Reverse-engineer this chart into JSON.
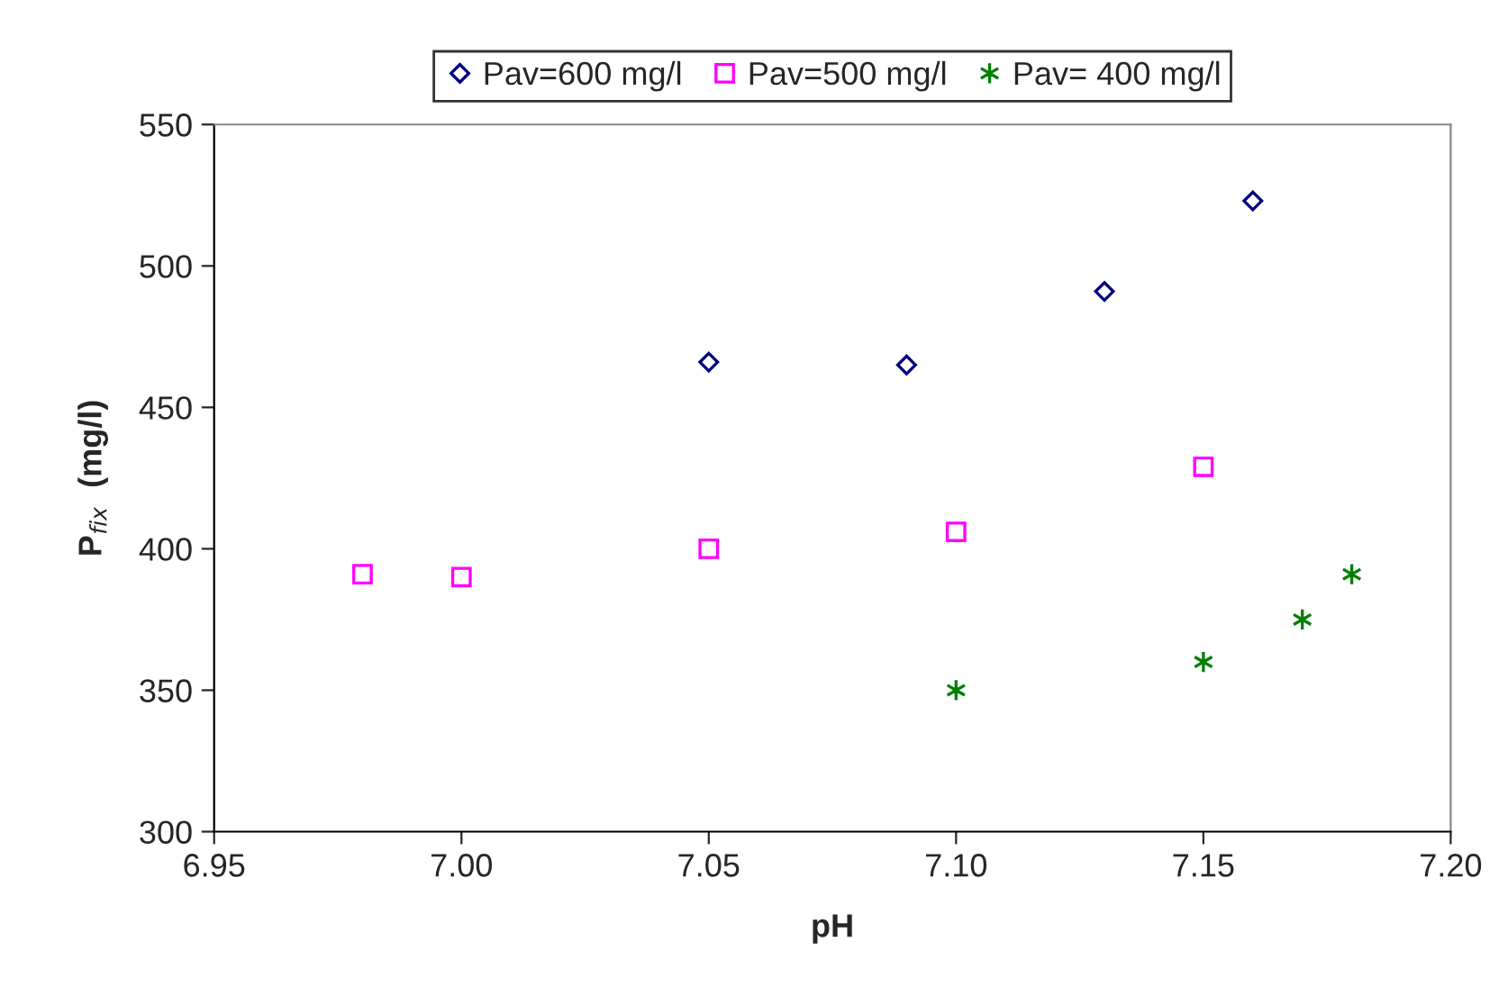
{
  "chart_data": {
    "type": "scatter",
    "xlabel": "pH",
    "ylabel": "P$_{fix}$  (mg/l)",
    "xlim": [
      6.95,
      7.2
    ],
    "xticks": [
      {
        "value": 6.95,
        "label": "6.95"
      },
      {
        "value": 7.0,
        "label": "7.00"
      },
      {
        "value": 7.05,
        "label": "7.05"
      },
      {
        "value": 7.1,
        "label": "7.10"
      },
      {
        "value": 7.15,
        "label": "7.15"
      },
      {
        "value": 7.2,
        "label": "7.20"
      }
    ],
    "ylim": [
      300,
      550
    ],
    "yticks": [
      300,
      350,
      400,
      450,
      500,
      550
    ],
    "grid": false,
    "legend": "top",
    "series": [
      {
        "name": "Pav=600 mg/l",
        "color": "#000080",
        "marker": "diamond",
        "x": [
          7.05,
          7.09,
          7.13,
          7.16
        ],
        "values": [
          466,
          465,
          491,
          523
        ]
      },
      {
        "name": "Pav=500 mg/l",
        "color": "#ff00ff",
        "marker": "square",
        "x": [
          6.98,
          7.0,
          7.05,
          7.1,
          7.15
        ],
        "values": [
          391,
          390,
          400,
          406,
          429
        ]
      },
      {
        "name": "Pav= 400 mg/l",
        "color": "#008000",
        "marker": "cross",
        "x": [
          7.1,
          7.15,
          7.17,
          7.18
        ],
        "values": [
          350,
          360,
          375,
          391
        ]
      }
    ]
  }
}
